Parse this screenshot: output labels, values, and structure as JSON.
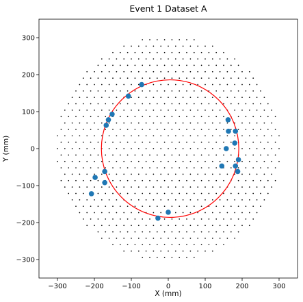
{
  "chart_data": {
    "type": "scatter",
    "title": "Event 1 Dataset A",
    "xlabel": "X (mm)",
    "ylabel": "Y (mm)",
    "xlim": [
      -350,
      350
    ],
    "ylim": [
      -350,
      350
    ],
    "xticks": [
      -300,
      -200,
      -100,
      0,
      100,
      200,
      300
    ],
    "yticks": [
      -300,
      -200,
      -100,
      0,
      100,
      200,
      300
    ],
    "grid": false,
    "detector_grid": {
      "description": "hexagonal lattice of small sensor dots inside a circular region",
      "pitch": 20,
      "radius": 305,
      "color": "#000000"
    },
    "hits": {
      "color": "#1f77b4",
      "points": [
        {
          "x": -72,
          "y": 173
        },
        {
          "x": -108,
          "y": 142
        },
        {
          "x": -152,
          "y": 93
        },
        {
          "x": -162,
          "y": 78
        },
        {
          "x": -168,
          "y": 63
        },
        {
          "x": -172,
          "y": -62
        },
        {
          "x": -198,
          "y": -78
        },
        {
          "x": -172,
          "y": -92
        },
        {
          "x": -208,
          "y": -122
        },
        {
          "x": -28,
          "y": -188
        },
        {
          "x": 0,
          "y": -172
        },
        {
          "x": 162,
          "y": 78
        },
        {
          "x": 182,
          "y": 47
        },
        {
          "x": 163,
          "y": 47
        },
        {
          "x": 180,
          "y": 15
        },
        {
          "x": 157,
          "y": 0
        },
        {
          "x": 190,
          "y": -30
        },
        {
          "x": 145,
          "y": -47
        },
        {
          "x": 182,
          "y": -47
        },
        {
          "x": 188,
          "y": -62
        }
      ]
    },
    "fit_circle": {
      "color": "#ff0000",
      "center": [
        5,
        0
      ],
      "radius": 186
    }
  }
}
